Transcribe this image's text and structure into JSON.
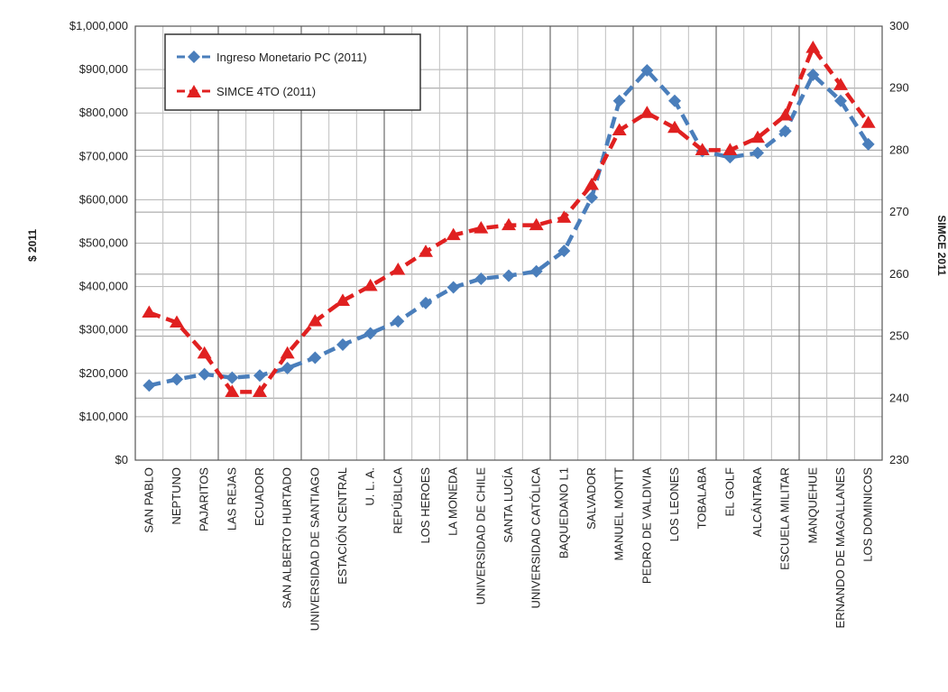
{
  "chart_data": {
    "type": "line",
    "title": "",
    "ylabel": "$ 2011",
    "y2label": "SIMCE 2011",
    "ylim": [
      0,
      1000000
    ],
    "y2lim": [
      230,
      300
    ],
    "yticks": [
      "$0",
      "$100,000",
      "$200,000",
      "$300,000",
      "$400,000",
      "$500,000",
      "$600,000",
      "$700,000",
      "$800,000",
      "$900,000",
      "$1,000,000"
    ],
    "y2ticks": [
      "230",
      "240",
      "250",
      "260",
      "270",
      "280",
      "290",
      "300"
    ],
    "grid": true,
    "legend_position": "top-left",
    "categories": [
      "SAN PABLO",
      "NEPTUNO",
      "PAJARITOS",
      "LAS REJAS",
      "ECUADOR",
      "SAN ALBERTO HURTADO",
      "UNIVERSIDAD DE SANTIAGO",
      "ESTACIÓN CENTRAL",
      "U. L. A.",
      "REPÚBLICA",
      "LOS HÉROES",
      "LA MONEDA",
      "UNIVERSIDAD DE CHILE",
      "SANTA LUCÍA",
      "UNIVERSIDAD CATÓLICA",
      "BAQUEDANO L1",
      "SALVADOR",
      "MANUEL MONTT",
      "PEDRO DE VALDIVIA",
      "LOS LEONES",
      "TOBALABA",
      "EL GOLF",
      "ALCÁNTARA",
      "ESCUELA MILITAR",
      "MANQUEHUE",
      "HERNANDO DE MAGALLANES",
      "LOS DOMINICOS"
    ],
    "category_labels_shown": [
      "SAN PABLO",
      "NEPTUNO",
      "PAJARITOS",
      "LAS REJAS",
      "ECUADOR",
      "SAN ALBERTO HURTADO",
      "UNIVERSIDAD DE SANTIAGO",
      "ESTACIÓN CENTRAL",
      "U. L. A.",
      "REPÚBLICA",
      "LOS HEROES",
      "LA MONEDA",
      "UNIVERSIDAD DE CHILE",
      "SANTA LUCÍA",
      "UNIVERSIDAD CATÓLICA",
      "BAQUEDANO L1",
      "SALVADOR",
      "MANUEL MONTT",
      "PEDRO DE VALDIVIA",
      "LOS LEONES",
      "TOBALABA",
      "EL GOLF",
      "ALCÁNTARA",
      "ESCUELA MILITAR",
      "MANQUEHUE",
      "ERNANDO DE MAGALLANES",
      "LOS DOMINICOS"
    ],
    "series": [
      {
        "name": "Ingreso Monetario PC (2011)",
        "axis": "left",
        "color": "#4a7ebb",
        "marker": "diamond",
        "values": [
          172000,
          186000,
          198000,
          190000,
          195000,
          212000,
          236000,
          266000,
          292000,
          320000,
          362000,
          398000,
          418000,
          425000,
          435000,
          482000,
          605000,
          828000,
          898000,
          828000,
          712000,
          698000,
          708000,
          758000,
          888000,
          828000,
          728000
        ]
      },
      {
        "name": "SIMCE 4TO (2011)",
        "axis": "right",
        "color": "#e02020",
        "marker": "triangle",
        "values": [
          253.8,
          252.2,
          247.2,
          241.0,
          241.0,
          247.2,
          252.4,
          255.7,
          258.1,
          260.7,
          263.6,
          266.3,
          267.4,
          267.9,
          267.9,
          269.1,
          274.4,
          283.2,
          286.0,
          283.6,
          280.0,
          280.0,
          282.0,
          285.6,
          296.5,
          290.5,
          284.4
        ]
      }
    ]
  }
}
